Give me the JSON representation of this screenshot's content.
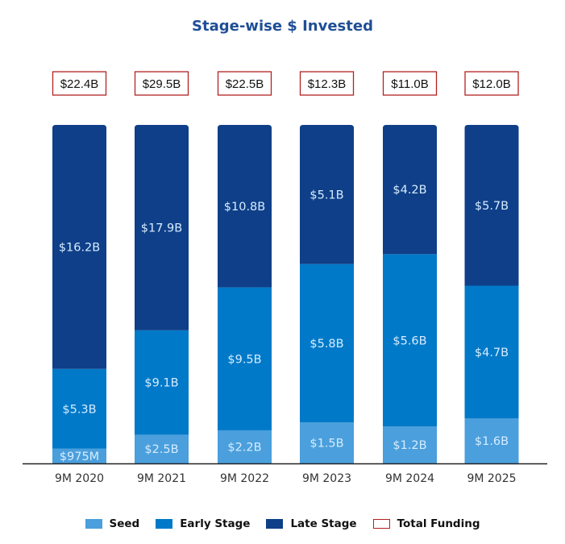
{
  "chart_data": {
    "type": "bar",
    "stacked": true,
    "normalized": "100%",
    "title": "Stage-wise $ Invested",
    "xlabel": "",
    "ylabel": "",
    "categories": [
      "9M 2020",
      "9M 2021",
      "9M 2022",
      "9M 2023",
      "9M 2024",
      "9M 2025"
    ],
    "series": [
      {
        "name": "Seed",
        "color": "#4a9fdc",
        "values": [
          0.975,
          2.5,
          2.2,
          1.5,
          1.2,
          1.6
        ],
        "labels": [
          "$975M",
          "$2.5B",
          "$2.2B",
          "$1.5B",
          "$1.2B",
          "$1.6B"
        ]
      },
      {
        "name": "Early Stage",
        "color": "#0079c8",
        "values": [
          5.3,
          9.1,
          9.5,
          5.8,
          5.6,
          4.7
        ],
        "labels": [
          "$5.3B",
          "$9.1B",
          "$9.5B",
          "$5.8B",
          "$5.6B",
          "$4.7B"
        ]
      },
      {
        "name": "Late Stage",
        "color": "#0f3f88",
        "values": [
          16.2,
          17.9,
          10.8,
          5.1,
          4.2,
          5.7
        ],
        "labels": [
          "$16.2B",
          "$17.9B",
          "$10.8B",
          "$5.1B",
          "$4.2B",
          "$5.7B"
        ]
      }
    ],
    "totals": {
      "name": "Total Funding",
      "border_color": "#b22222",
      "values": [
        22.4,
        29.5,
        22.5,
        12.3,
        11.0,
        12.0
      ],
      "labels": [
        "$22.4B",
        "$29.5B",
        "$22.5B",
        "$12.3B",
        "$11.0B",
        "$12.0B"
      ]
    },
    "value_unit": "USD billions",
    "grid": false,
    "legend_position": "bottom-center"
  },
  "legend": [
    {
      "label": "Seed",
      "color": "#4a9fdc",
      "type": "filled"
    },
    {
      "label": "Early Stage",
      "color": "#0079c8",
      "type": "filled"
    },
    {
      "label": "Late Stage",
      "color": "#0f3f88",
      "type": "filled"
    },
    {
      "label": "Total Funding",
      "color": "#b22222",
      "type": "outline"
    }
  ]
}
